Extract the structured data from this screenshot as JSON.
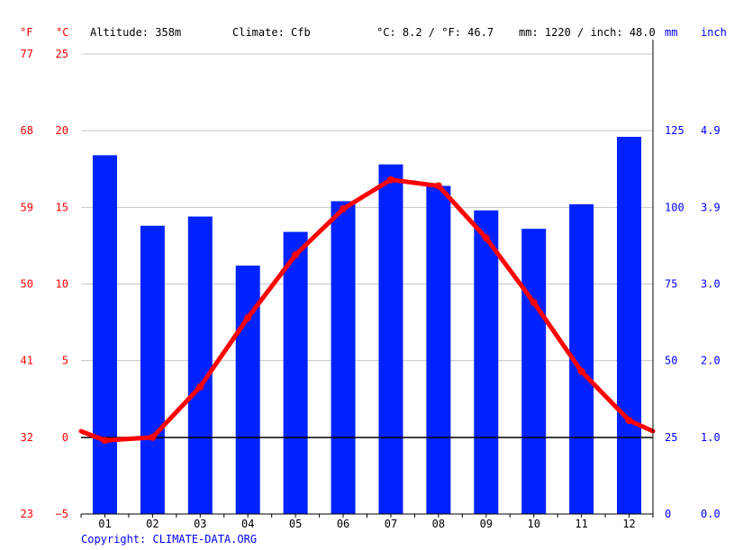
{
  "header": {
    "f_unit": "°F",
    "c_unit": "°C",
    "altitude": "Altitude: 358m",
    "climate": "Climate: Cfb",
    "temp_avg": "°C: 8.2 / °F: 46.7",
    "precip_total": "mm: 1220 / inch: 48.0",
    "mm_unit": "mm",
    "inch_unit": "inch"
  },
  "copyright": "Copyright: CLIMATE-DATA.ORG",
  "colors": {
    "bars": "#0022ff",
    "line": "#ff0000",
    "left_axis": "#ff0000",
    "right_axis": "#0000ff"
  },
  "chart_data": {
    "type": "bar+line",
    "categories": [
      "01",
      "02",
      "03",
      "04",
      "05",
      "06",
      "07",
      "08",
      "09",
      "10",
      "11",
      "12"
    ],
    "precip_mm": [
      117,
      94,
      97,
      81,
      92,
      102,
      114,
      107,
      99,
      93,
      101,
      123
    ],
    "temp_c": [
      -0.2,
      0.0,
      3.3,
      7.8,
      11.9,
      14.9,
      16.8,
      16.4,
      13.0,
      8.8,
      4.3,
      1.1
    ],
    "temp_c_edges": [
      0.4,
      0.4
    ],
    "left_c_ticks": [
      "25",
      "20",
      "15",
      "10",
      "5",
      "0",
      "−5"
    ],
    "left_f_ticks": [
      "77",
      "68",
      "59",
      "50",
      "41",
      "32",
      "23"
    ],
    "right_mm_ticks": [
      "125",
      "100",
      "75",
      "50",
      "25",
      "0"
    ],
    "right_inch_ticks": [
      "4.9",
      "3.9",
      "3.0",
      "2.0",
      "1.0",
      "0.0"
    ],
    "c_range": [
      -5,
      25
    ],
    "mm_range": [
      0,
      150
    ],
    "grid": true
  }
}
